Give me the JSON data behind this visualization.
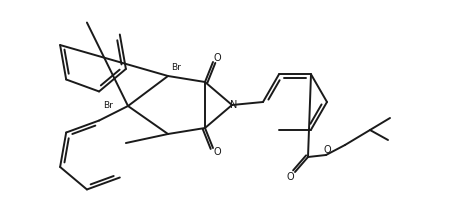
{
  "bg_color": "#ffffff",
  "line_color": "#1a1a1a",
  "line_width": 1.4,
  "figsize": [
    4.73,
    2.08
  ],
  "dpi": 100,
  "atoms": {
    "Br1_label": "Br",
    "Br2_label": "Br",
    "N_label": "N",
    "O1_label": "O",
    "O2_label": "O",
    "O3_label": "O"
  }
}
